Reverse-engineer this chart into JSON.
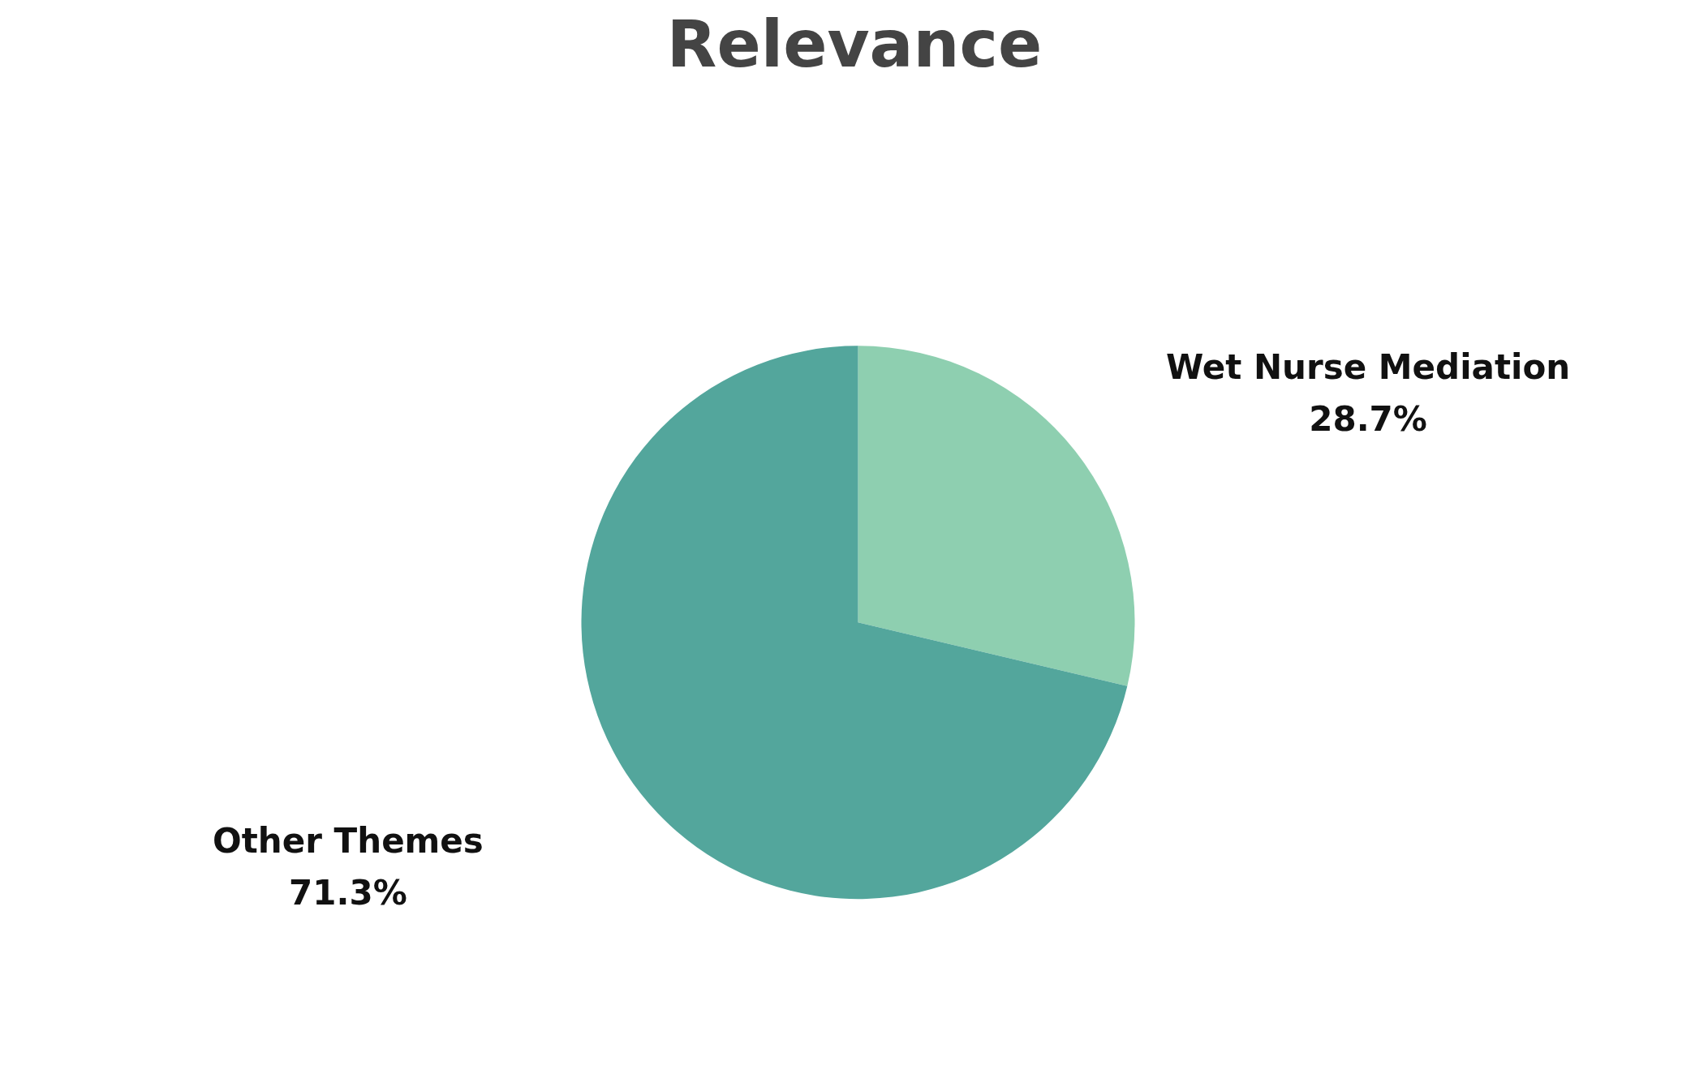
{
  "chart_data": {
    "type": "pie",
    "title": "Relevance",
    "categories": [
      "Wet Nurse Mediation",
      "Other Themes"
    ],
    "values": [
      28.7,
      71.3
    ],
    "value_labels": [
      "28.7%",
      "71.3%"
    ],
    "colors": [
      "#8ecfb0",
      "#53a69c"
    ]
  }
}
